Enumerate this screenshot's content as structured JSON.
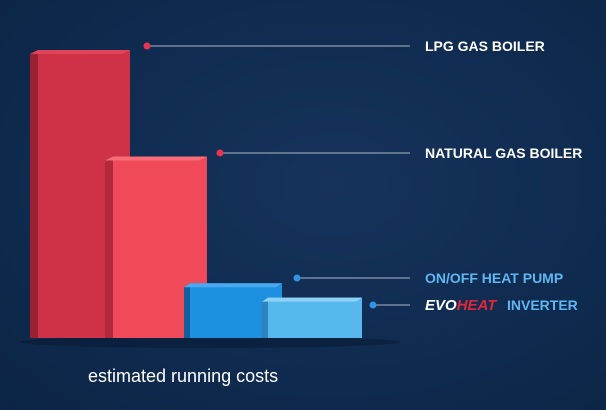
{
  "chart_data": {
    "type": "bar",
    "categories": [
      "LPG GAS BOILER",
      "NATURAL GAS BOILER",
      "ON/OFF HEAT PUMP",
      "INVERTER"
    ],
    "values": [
      100,
      63,
      19,
      14
    ],
    "ylim": [
      0,
      100
    ],
    "xlabel": "estimated running costs",
    "grid": false,
    "logo_text": [
      "EVO",
      "HEAT"
    ],
    "colors": {
      "front": [
        "#cf3146",
        "#f04a5a",
        "#1e90e0",
        "#57b8ee"
      ],
      "side": [
        "#9c2033",
        "#b12a3c",
        "#135f9d",
        "#2f83bd"
      ],
      "top": [
        "#e04458",
        "#f96c79",
        "#48a9ee",
        "#8fd2f7"
      ],
      "label": [
        "#ffffff",
        "#ffffff",
        "#5fb6f0",
        "#5fb6f0"
      ],
      "dot": [
        "#e8344d",
        "#e8344d",
        "#2f95e0",
        "#2f95e0"
      ],
      "leader": [
        "#c9cfd9",
        "#c9cfd9",
        "#c9cfd9",
        "#c9cfd9"
      ],
      "logo_evo": "#ffffff",
      "logo_heat": "#e3263a"
    }
  }
}
